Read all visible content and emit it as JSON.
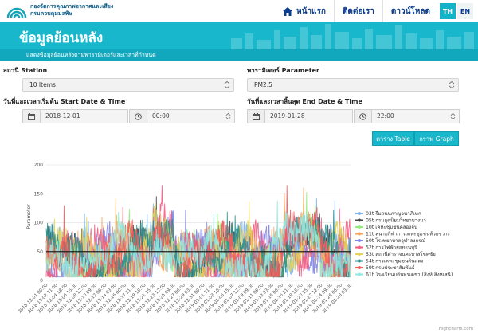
{
  "header": {
    "org_line1": "กองจัดการคุณภาพอากาศและเสียง",
    "org_line2": "กรมควบคุมมลพิษ",
    "nav": [
      {
        "label": "หน้าแรก",
        "icon": "home-icon"
      },
      {
        "label": "ติดต่อเรา"
      },
      {
        "label": "ดาวน์โหลด"
      }
    ],
    "lang_th": "TH",
    "lang_en": "EN"
  },
  "hero": {
    "title": "ข้อมูลย้อนหลัง",
    "subtitle": "แสดงข้อมูลย้อนหลังตามพารามิเตอร์และเวลาที่กำหนด"
  },
  "form": {
    "station_label": "สถานี Station",
    "station_value": "10 Items",
    "parameter_label": "พารามิเตอร์ Parameter",
    "parameter_value": "PM2.5",
    "start_label": "วันที่และเวลาเริ่มต้น Start Date & Time",
    "start_date": "2018-12-01",
    "start_time": "00:00",
    "end_label": "วันที่และเวลาสิ้นสุด End Date & Time",
    "end_date": "2019-01-28",
    "end_time": "22:00",
    "table_button": "ตาราง Table",
    "graph_button": "กราฟ Graph"
  },
  "chart_data": {
    "type": "line",
    "ylabel": "Parameter",
    "ylim": [
      0,
      200
    ],
    "yticks": [
      0,
      50,
      100,
      150,
      200
    ],
    "reference_line": 50,
    "x_ticks": [
      "2018-12-01 00:00",
      "2018-12-02 21:00",
      "2018-12-04 18:00",
      "2018-12-06 15:00",
      "2018-12-08 12:00",
      "2018-12-10 09:00",
      "2018-12-12 06:00",
      "2018-12-14 03:00",
      "2018-12-16 00:00",
      "2018-12-17 21:00",
      "2018-12-19 18:00",
      "2018-12-21 15:00",
      "2018-12-23 12:00",
      "2018-12-25 09:00",
      "2018-12-27 06:00",
      "2018-12-29 03:00",
      "2018-12-31 00:00",
      "2019-01-01 21:00",
      "2019-01-03 18:00",
      "2019-01-05 15:00",
      "2019-01-07 12:00",
      "2019-01-09 09:00",
      "2019-01-11 06:00",
      "2019-01-13 03:00",
      "2019-01-15 00:00",
      "2019-01-16 21:00",
      "2019-01-18 18:00",
      "2019-01-20 15:00",
      "2019-01-22 12:00",
      "2019-01-24 09:00",
      "2019-01-26 06:00",
      "2019-01-28 03:00"
    ],
    "series": [
      {
        "name": "03t รีมถนนกาญจนาภิเษก",
        "color": "#7cb5ec"
      },
      {
        "name": "05t กรมอุตุนิยมวิทยาบางนา",
        "color": "#434348"
      },
      {
        "name": "10t เคหะชุมชนคลองจั่น",
        "color": "#90ed7d"
      },
      {
        "name": "11t สนามกีฬาการเคหะชุมชนห้วยขวาง",
        "color": "#f7a35c"
      },
      {
        "name": "50t โรงพยาบาลจุฬาลงกรณ์",
        "color": "#8085e9"
      },
      {
        "name": "52t การไฟฟ้าย่อยธนบุรี",
        "color": "#f15c80"
      },
      {
        "name": "53t สถานีตำรวจนครบาลโชคชัย",
        "color": "#e4d354"
      },
      {
        "name": "54t การเคหะชุมชนดินแดง",
        "color": "#2b908f"
      },
      {
        "name": "59t กรมประชาสัมพันธ์",
        "color": "#f45b5b"
      },
      {
        "name": "61t โรงเรียนบดินทรเดชา (สิงห์ สิงหเสนี)",
        "color": "#91e8e1"
      }
    ],
    "credit": "Highcharts.com"
  }
}
